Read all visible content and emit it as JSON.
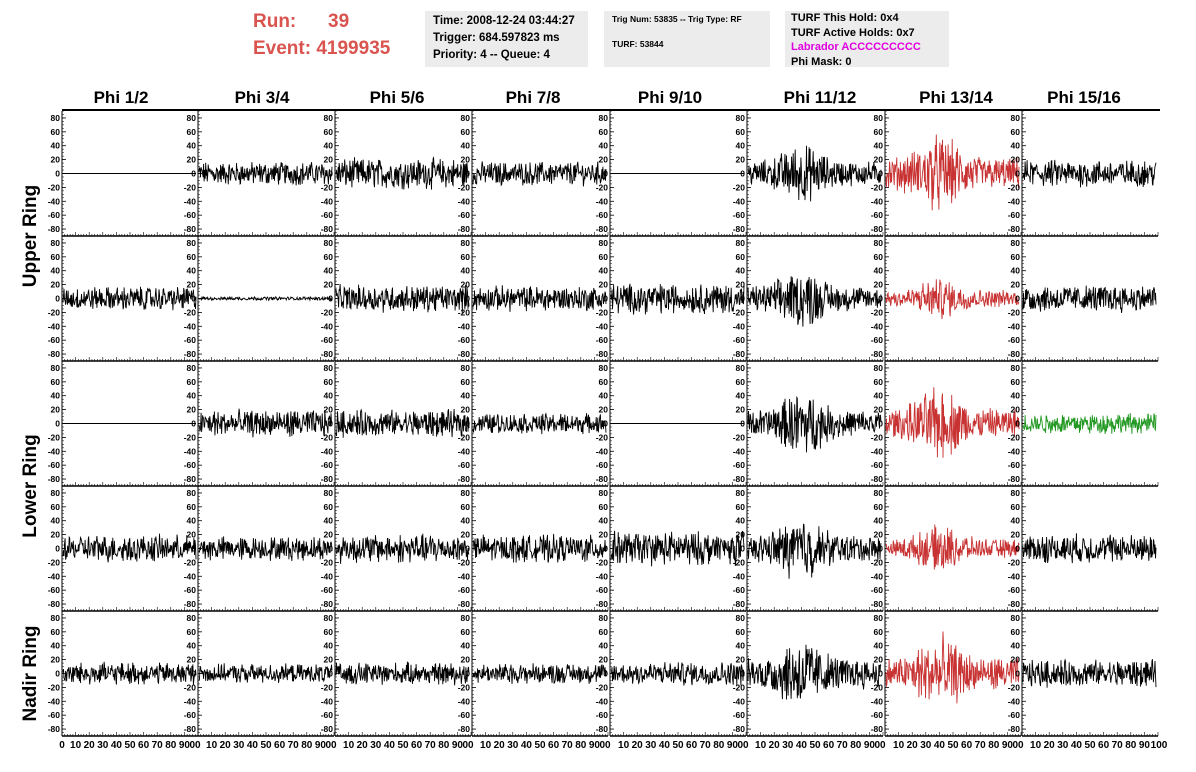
{
  "header": {
    "run_label": "Run:",
    "run_value": "39",
    "event_label": "Event:",
    "event_value": "4199935"
  },
  "info_time": {
    "time": "Time: 2008-12-24 03:44:27",
    "trigger": "Trigger: 684.597823 ms",
    "priority": "Priority: 4 -- Queue: 4"
  },
  "info_trig": {
    "line1": "Trig Num: 53835 -- Trig Type: RF",
    "line2": "TURF: 53844"
  },
  "info_turf": {
    "hold": "TURF This Hold: 0x4",
    "active": "TURF Active Holds: 0x7",
    "labrador": "Labrador ACCCCCCCCC",
    "phimask": "Phi Mask: 0"
  },
  "chart_data": {
    "type": "line",
    "grid": false,
    "columns": [
      "Phi 1/2",
      "Phi 3/4",
      "Phi 5/6",
      "Phi 7/8",
      "Phi 9/10",
      "Phi 11/12",
      "Phi 13/14",
      "Phi 15/16"
    ],
    "ring_labels": [
      {
        "text": "Upper Ring",
        "rows": [
          0,
          1
        ]
      },
      {
        "text": "Lower Ring",
        "rows": [
          2,
          3
        ]
      },
      {
        "text": "Nadir Ring",
        "rows": [
          4
        ]
      }
    ],
    "y_ticks": [
      80,
      60,
      40,
      20,
      0,
      -20,
      -40,
      -60,
      -80
    ],
    "y_ticks_nadir": [
      80,
      60,
      40,
      20,
      0,
      -20,
      -40,
      -60,
      -80
    ],
    "x_ticks": [
      0,
      10,
      20,
      30,
      40,
      50,
      60,
      70,
      80,
      90
    ],
    "x_tick_last": "100",
    "xlim": [
      0,
      100
    ],
    "ylim": [
      -90,
      90
    ],
    "colors": {
      "normal": "#000000",
      "triggered": "#c83232",
      "green": "#229922"
    },
    "panels": [
      {
        "row": 0,
        "col": 0,
        "amp": 0,
        "color": "normal"
      },
      {
        "row": 0,
        "col": 1,
        "amp": 14,
        "color": "normal"
      },
      {
        "row": 0,
        "col": 2,
        "amp": 18,
        "color": "normal"
      },
      {
        "row": 0,
        "col": 3,
        "amp": 14,
        "color": "normal"
      },
      {
        "row": 0,
        "col": 4,
        "amp": 0,
        "color": "normal"
      },
      {
        "row": 0,
        "col": 5,
        "amp": 26,
        "color": "normal"
      },
      {
        "row": 0,
        "col": 6,
        "amp": 34,
        "color": "triggered"
      },
      {
        "row": 0,
        "col": 7,
        "amp": 16,
        "color": "normal"
      },
      {
        "row": 1,
        "col": 0,
        "amp": 14,
        "color": "normal"
      },
      {
        "row": 1,
        "col": 1,
        "amp": 2,
        "color": "normal"
      },
      {
        "row": 1,
        "col": 2,
        "amp": 16,
        "color": "normal"
      },
      {
        "row": 1,
        "col": 3,
        "amp": 15,
        "color": "normal"
      },
      {
        "row": 1,
        "col": 4,
        "amp": 18,
        "color": "normal"
      },
      {
        "row": 1,
        "col": 5,
        "amp": 26,
        "color": "normal"
      },
      {
        "row": 1,
        "col": 6,
        "amp": 18,
        "color": "triggered"
      },
      {
        "row": 1,
        "col": 7,
        "amp": 16,
        "color": "normal"
      },
      {
        "row": 2,
        "col": 0,
        "amp": 0,
        "color": "normal"
      },
      {
        "row": 2,
        "col": 1,
        "amp": 16,
        "color": "normal"
      },
      {
        "row": 2,
        "col": 2,
        "amp": 16,
        "color": "normal"
      },
      {
        "row": 2,
        "col": 3,
        "amp": 12,
        "color": "normal"
      },
      {
        "row": 2,
        "col": 4,
        "amp": 0,
        "color": "normal"
      },
      {
        "row": 2,
        "col": 5,
        "amp": 28,
        "color": "normal"
      },
      {
        "row": 2,
        "col": 6,
        "amp": 32,
        "color": "triggered"
      },
      {
        "row": 2,
        "col": 7,
        "amp": 12,
        "color": "green"
      },
      {
        "row": 3,
        "col": 0,
        "amp": 16,
        "color": "normal"
      },
      {
        "row": 3,
        "col": 1,
        "amp": 14,
        "color": "normal"
      },
      {
        "row": 3,
        "col": 2,
        "amp": 17,
        "color": "normal"
      },
      {
        "row": 3,
        "col": 3,
        "amp": 16,
        "color": "normal"
      },
      {
        "row": 3,
        "col": 4,
        "amp": 20,
        "color": "normal"
      },
      {
        "row": 3,
        "col": 5,
        "amp": 28,
        "color": "normal"
      },
      {
        "row": 3,
        "col": 6,
        "amp": 20,
        "color": "triggered"
      },
      {
        "row": 3,
        "col": 7,
        "amp": 17,
        "color": "normal"
      },
      {
        "row": 4,
        "col": 0,
        "amp": 13,
        "color": "normal"
      },
      {
        "row": 4,
        "col": 1,
        "amp": 11,
        "color": "normal"
      },
      {
        "row": 4,
        "col": 2,
        "amp": 13,
        "color": "normal"
      },
      {
        "row": 4,
        "col": 3,
        "amp": 12,
        "color": "normal"
      },
      {
        "row": 4,
        "col": 4,
        "amp": 14,
        "color": "normal"
      },
      {
        "row": 4,
        "col": 5,
        "amp": 32,
        "color": "normal"
      },
      {
        "row": 4,
        "col": 6,
        "amp": 34,
        "color": "triggered"
      },
      {
        "row": 4,
        "col": 7,
        "amp": 16,
        "color": "normal"
      }
    ]
  }
}
